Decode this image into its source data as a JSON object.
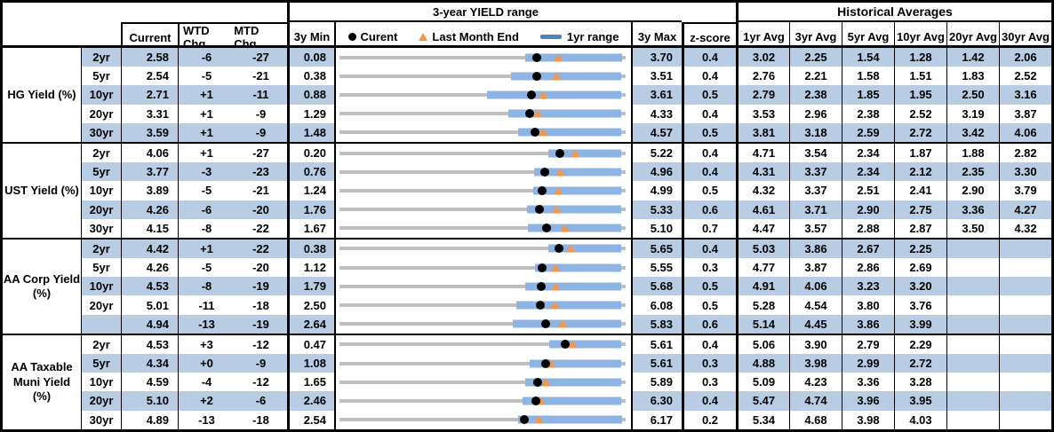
{
  "header": {
    "yield_range_title": "3-year YIELD range",
    "historical_title": "Historical Averages",
    "col_current": "Current",
    "col_wtd": "WTD Chg",
    "col_mtd": "MTD Chg",
    "col_min": "3y Min",
    "col_max": "3y Max",
    "col_z": "z-score",
    "col_avgs": [
      "1yr Avg",
      "3yr Avg",
      "5yr Avg",
      "10yr Avg",
      "20yr Avg",
      "30yr Avg"
    ],
    "legend": {
      "current": "Curent",
      "last_month_end": "Last Month End",
      "range": "1yr range"
    }
  },
  "colors": {
    "band": "#b8cce4",
    "bar_1yr": "#8db4e2",
    "gray_line": "#bfbfbf",
    "dot": "#000000",
    "triangle": "#f79646",
    "legend_bar": "#4f81bd",
    "border": "#000000"
  },
  "chart_data": {
    "type": "bullet-range",
    "title": "3-year YIELD range",
    "legend": [
      "Curent (black dot)",
      "Last Month End (orange triangle)",
      "1yr range (blue bar)",
      "3y min-max (gray line)"
    ],
    "value_unit": "yield %",
    "groups": [
      {
        "label": "HG Yield (%)",
        "rows": [
          {
            "tenor": "2yr",
            "current": 2.58,
            "wtd": "-6",
            "mtd": "-27",
            "min": 0.08,
            "max": 3.7,
            "lme": 2.85,
            "bar": [
              2.43,
              3.65
            ],
            "z": "0.4",
            "avgs": [
              "3.02",
              "2.25",
              "1.54",
              "1.28",
              "1.42",
              "2.06"
            ]
          },
          {
            "tenor": "5yr",
            "current": 2.54,
            "wtd": "-5",
            "mtd": "-21",
            "min": 0.38,
            "max": 3.51,
            "lme": 2.75,
            "bar": [
              2.26,
              3.46
            ],
            "z": "0.4",
            "avgs": [
              "2.76",
              "2.21",
              "1.58",
              "1.51",
              "1.83",
              "2.52"
            ]
          },
          {
            "tenor": "10yr",
            "current": 2.71,
            "wtd": "+1",
            "mtd": "-11",
            "min": 0.88,
            "max": 3.61,
            "lme": 2.82,
            "bar": [
              2.29,
              3.57
            ],
            "z": "0.5",
            "avgs": [
              "2.79",
              "2.38",
              "1.85",
              "1.95",
              "2.50",
              "3.16"
            ]
          },
          {
            "tenor": "20yr",
            "current": 3.31,
            "wtd": "+1",
            "mtd": "-9",
            "min": 1.29,
            "max": 4.33,
            "lme": 3.4,
            "bar": [
              3.08,
              4.28
            ],
            "z": "0.4",
            "avgs": [
              "3.53",
              "2.96",
              "2.38",
              "2.52",
              "3.19",
              "3.87"
            ]
          },
          {
            "tenor": "30yr",
            "current": 3.59,
            "wtd": "+1",
            "mtd": "-9",
            "min": 1.48,
            "max": 4.57,
            "lme": 3.68,
            "bar": [
              3.41,
              4.52
            ],
            "z": "0.5",
            "avgs": [
              "3.81",
              "3.18",
              "2.59",
              "2.72",
              "3.42",
              "4.06"
            ]
          }
        ]
      },
      {
        "label": "UST Yield (%)",
        "rows": [
          {
            "tenor": "2yr",
            "current": 4.06,
            "wtd": "+1",
            "mtd": "-27",
            "min": 0.2,
            "max": 5.22,
            "lme": 4.33,
            "bar": [
              3.86,
              5.14
            ],
            "z": "0.4",
            "avgs": [
              "4.71",
              "3.54",
              "2.34",
              "1.87",
              "1.88",
              "2.82"
            ]
          },
          {
            "tenor": "5yr",
            "current": 3.77,
            "wtd": "-3",
            "mtd": "-23",
            "min": 0.76,
            "max": 4.96,
            "lme": 4.0,
            "bar": [
              3.62,
              4.9
            ],
            "z": "0.4",
            "avgs": [
              "4.31",
              "3.37",
              "2.34",
              "2.12",
              "2.35",
              "3.30"
            ]
          },
          {
            "tenor": "10yr",
            "current": 3.89,
            "wtd": "-5",
            "mtd": "-21",
            "min": 1.24,
            "max": 4.99,
            "lme": 4.1,
            "bar": [
              3.78,
              4.93
            ],
            "z": "0.5",
            "avgs": [
              "4.32",
              "3.37",
              "2.51",
              "2.41",
              "2.90",
              "3.79"
            ]
          },
          {
            "tenor": "20yr",
            "current": 4.26,
            "wtd": "-6",
            "mtd": "-20",
            "min": 1.76,
            "max": 5.33,
            "lme": 4.46,
            "bar": [
              4.1,
              5.28
            ],
            "z": "0.6",
            "avgs": [
              "4.61",
              "3.71",
              "2.90",
              "2.75",
              "3.36",
              "4.27"
            ]
          },
          {
            "tenor": "30yr",
            "current": 4.15,
            "wtd": "-8",
            "mtd": "-22",
            "min": 1.67,
            "max": 5.1,
            "lme": 4.37,
            "bar": [
              3.93,
              5.05
            ],
            "z": "0.7",
            "avgs": [
              "4.47",
              "3.57",
              "2.88",
              "2.87",
              "3.50",
              "4.32"
            ]
          }
        ]
      },
      {
        "label": "AA Corp Yield\n(%)",
        "rows": [
          {
            "tenor": "2yr",
            "current": 4.42,
            "wtd": "+1",
            "mtd": "-22",
            "min": 0.38,
            "max": 5.65,
            "lme": 4.64,
            "bar": [
              4.22,
              5.57
            ],
            "z": "0.4",
            "avgs": [
              "5.03",
              "3.86",
              "2.67",
              "2.25",
              "",
              ""
            ]
          },
          {
            "tenor": "5yr",
            "current": 4.26,
            "wtd": "-5",
            "mtd": "-20",
            "min": 1.12,
            "max": 5.55,
            "lme": 4.46,
            "bar": [
              4.14,
              5.48
            ],
            "z": "0.3",
            "avgs": [
              "4.77",
              "3.87",
              "2.86",
              "2.69",
              "",
              ""
            ]
          },
          {
            "tenor": "10yr",
            "current": 4.53,
            "wtd": "-8",
            "mtd": "-19",
            "min": 1.79,
            "max": 5.68,
            "lme": 4.72,
            "bar": [
              4.31,
              5.62
            ],
            "z": "0.5",
            "avgs": [
              "4.91",
              "4.06",
              "3.23",
              "3.20",
              "",
              ""
            ]
          },
          {
            "tenor": "20yr",
            "current": 5.01,
            "wtd": "-11",
            "mtd": "-18",
            "min": 2.5,
            "max": 6.08,
            "lme": 5.19,
            "bar": [
              4.71,
              6.03
            ],
            "z": "0.5",
            "avgs": [
              "5.28",
              "4.54",
              "3.80",
              "3.76",
              "",
              ""
            ]
          },
          {
            "tenor": "",
            "current": 4.94,
            "wtd": "-13",
            "mtd": "-19",
            "min": 2.64,
            "max": 5.83,
            "lme": 5.13,
            "bar": [
              4.57,
              5.78
            ],
            "z": "0.6",
            "avgs": [
              "5.14",
              "4.45",
              "3.86",
              "3.99",
              "",
              ""
            ]
          }
        ]
      },
      {
        "label": "AA Taxable\nMuni Yield\n(%)",
        "rows": [
          {
            "tenor": "2yr",
            "current": 4.53,
            "wtd": "+3",
            "mtd": "-12",
            "min": 0.47,
            "max": 5.61,
            "lme": 4.65,
            "bar": [
              4.23,
              5.53
            ],
            "z": "0.4",
            "avgs": [
              "5.06",
              "3.90",
              "2.79",
              "2.29",
              "",
              ""
            ]
          },
          {
            "tenor": "5yr",
            "current": 4.34,
            "wtd": "+0",
            "mtd": "-9",
            "min": 1.08,
            "max": 5.61,
            "lme": 4.43,
            "bar": [
              4.09,
              5.54
            ],
            "z": "0.3",
            "avgs": [
              "4.88",
              "3.98",
              "2.99",
              "2.72",
              "",
              ""
            ]
          },
          {
            "tenor": "10yr",
            "current": 4.59,
            "wtd": "-4",
            "mtd": "-12",
            "min": 1.65,
            "max": 5.89,
            "lme": 4.71,
            "bar": [
              4.4,
              5.83
            ],
            "z": "0.3",
            "avgs": [
              "5.09",
              "4.23",
              "3.36",
              "3.28",
              "",
              ""
            ]
          },
          {
            "tenor": "20yr",
            "current": 5.1,
            "wtd": "+2",
            "mtd": "-6",
            "min": 2.46,
            "max": 6.3,
            "lme": 5.16,
            "bar": [
              4.92,
              6.24
            ],
            "z": "0.4",
            "avgs": [
              "5.47",
              "4.74",
              "3.96",
              "3.95",
              "",
              ""
            ]
          },
          {
            "tenor": "30yr",
            "current": 4.89,
            "wtd": "-13",
            "mtd": "-18",
            "min": 2.54,
            "max": 6.17,
            "lme": 5.07,
            "bar": [
              4.81,
              6.12
            ],
            "z": "0.2",
            "avgs": [
              "5.34",
              "4.68",
              "3.98",
              "4.03",
              "",
              ""
            ]
          }
        ]
      }
    ]
  }
}
